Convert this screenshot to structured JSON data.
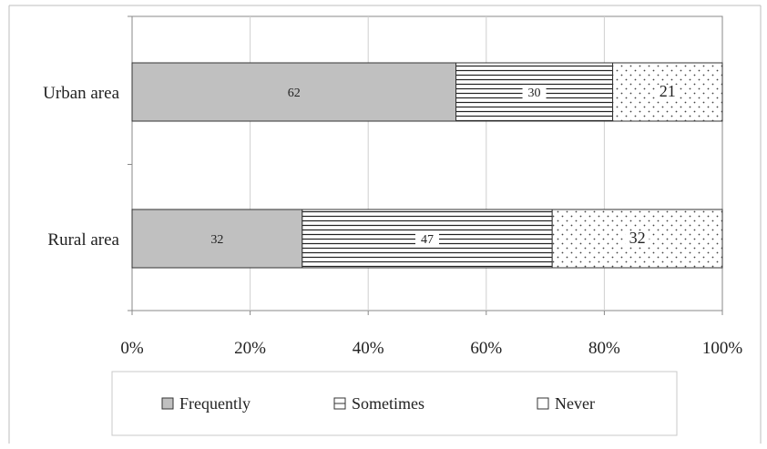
{
  "chart_data": {
    "type": "bar",
    "orientation": "horizontal",
    "stacked": "percent",
    "categories": [
      "Urban area",
      "Rural area"
    ],
    "series": [
      {
        "name": "Frequently",
        "values": [
          62,
          32
        ],
        "color": "#c0c0c0",
        "pattern": "solid"
      },
      {
        "name": "Sometimes",
        "values": [
          30,
          47
        ],
        "color": "#ffffff",
        "pattern": "horizontal-lines"
      },
      {
        "name": "Never",
        "values": [
          21,
          32
        ],
        "color": "#ffffff",
        "pattern": "dots"
      }
    ],
    "x_ticks": [
      "0%",
      "20%",
      "40%",
      "60%",
      "80%",
      "100%"
    ],
    "xlim": [
      0,
      100
    ],
    "grid": true,
    "legend": "bottom"
  }
}
